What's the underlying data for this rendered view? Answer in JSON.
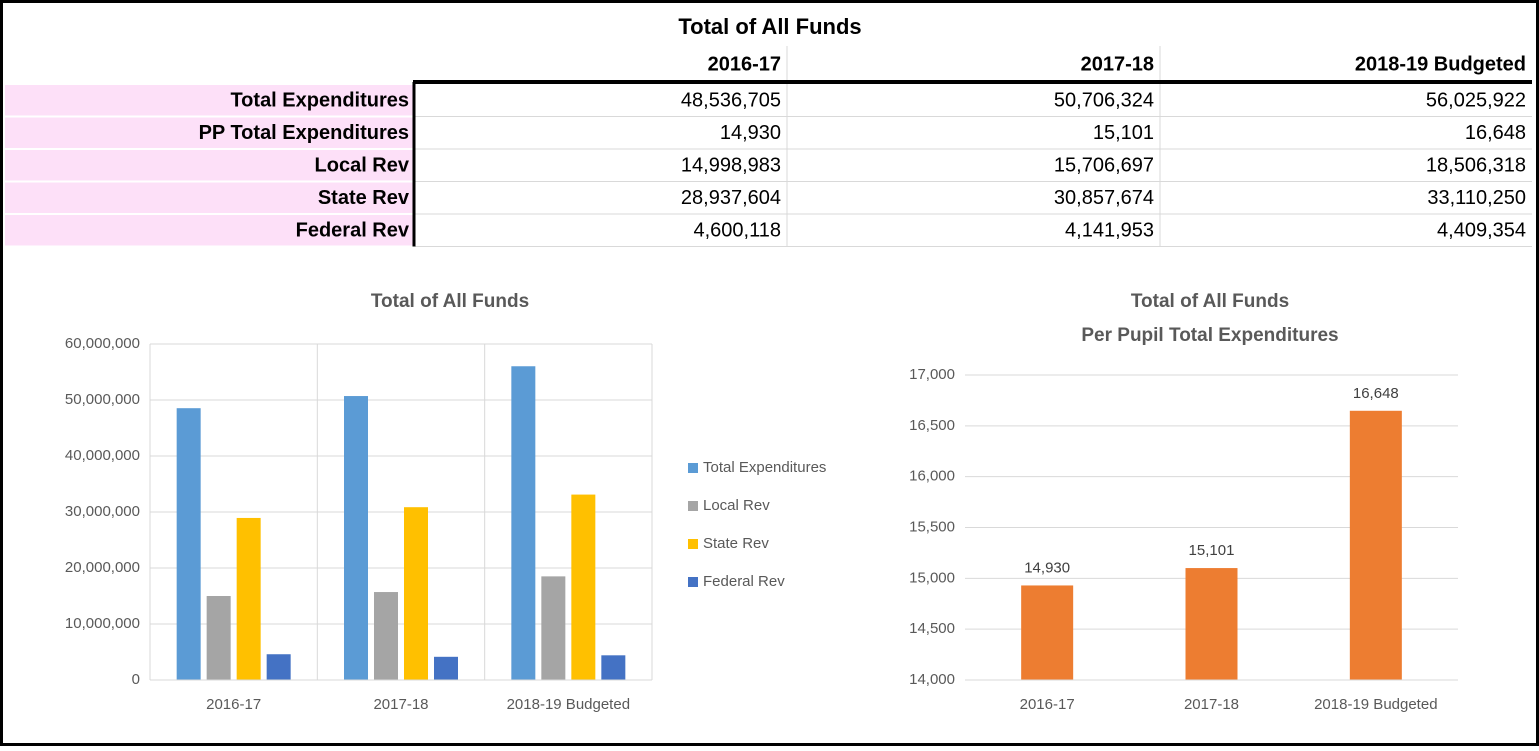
{
  "table": {
    "title": "Total of All Funds",
    "columns": [
      "2016-17",
      "2017-18",
      "2018-19 Budgeted"
    ],
    "rows": [
      [
        "Total Expenditures",
        "48,536,705",
        "50,706,324",
        "56,025,922"
      ],
      [
        "PP Total Expenditures",
        "14,930",
        "15,101",
        "16,648"
      ],
      [
        "Local Rev",
        "14,998,983",
        "15,706,697",
        "18,506,318"
      ],
      [
        "State Rev",
        "28,937,604",
        "30,857,674",
        "33,110,250"
      ],
      [
        "Federal Rev",
        "4,600,118",
        "4,141,953",
        "4,409,354"
      ]
    ]
  },
  "chart_data": [
    {
      "type": "bar",
      "title": "Total of All Funds",
      "categories": [
        "2016-17",
        "2017-18",
        "2018-19 Budgeted"
      ],
      "series": [
        {
          "name": "Total Expenditures",
          "color": "#5b9bd5",
          "values": [
            48536705,
            50706324,
            56025922
          ]
        },
        {
          "name": "Local Rev",
          "color": "#a5a5a5",
          "values": [
            14998983,
            15706697,
            18506318
          ]
        },
        {
          "name": "State Rev",
          "color": "#ffc000",
          "values": [
            28937604,
            30857674,
            33110250
          ]
        },
        {
          "name": "Federal Rev",
          "color": "#4472c4",
          "values": [
            4600118,
            4141953,
            4409354
          ]
        }
      ],
      "ylim": [
        0,
        60000000
      ],
      "yticks": [
        0,
        {
          "value": 10000000,
          "label": "10,000,000"
        },
        {
          "value": 20000000,
          "label": "20,000,000"
        },
        {
          "value": 30000000,
          "label": "30,000,000"
        },
        {
          "value": 40000000,
          "label": "40,000,000"
        },
        {
          "value": 50000000,
          "label": "50,000,000"
        },
        {
          "value": 60000000,
          "label": "60,000,000"
        }
      ],
      "grid": true,
      "legend": "right"
    },
    {
      "type": "bar",
      "title": "Total of All Funds",
      "subtitle": "Per Pupil Total Expenditures",
      "categories": [
        "2016-17",
        "2017-18",
        "2018-19 Budgeted"
      ],
      "values": [
        14930,
        15101,
        16648
      ],
      "value_labels": [
        "14,930",
        "15,101",
        "16,648"
      ],
      "color": "#ed7d31",
      "ylim": [
        14000,
        17000
      ],
      "yticks": [
        {
          "value": 14000,
          "label": "14,000"
        },
        {
          "value": 14500,
          "label": "14,500"
        },
        {
          "value": 15000,
          "label": "15,000"
        },
        {
          "value": 15500,
          "label": "15,500"
        },
        {
          "value": 16000,
          "label": "16,000"
        },
        {
          "value": 16500,
          "label": "16,500"
        },
        {
          "value": 17000,
          "label": "17,000"
        }
      ],
      "grid": true
    }
  ]
}
